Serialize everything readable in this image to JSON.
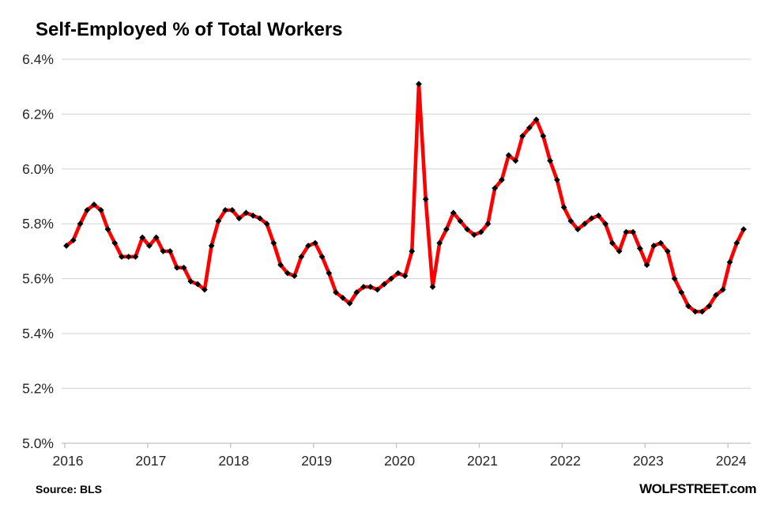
{
  "title": "Self-Employed % of Total Workers",
  "footer": {
    "source": "Source: BLS",
    "site": "WOLFSTREET.com"
  },
  "chart_data": {
    "type": "line",
    "title": "Self-Employed % of Total Workers",
    "xlabel": "",
    "ylabel": "",
    "grid": "horizontal",
    "legend": "none",
    "ylim": [
      5.0,
      6.4
    ],
    "y_tick_step": 0.2,
    "y_tick_labels": [
      "6.4%",
      "6.2%",
      "6.0%",
      "5.8%",
      "5.6%",
      "5.4%",
      "5.2%",
      "5.0%"
    ],
    "x_tick_labels": [
      "2016",
      "2017",
      "2018",
      "2019",
      "2020",
      "2021",
      "2022",
      "2023",
      "2024"
    ],
    "line_color": "#FF0000",
    "marker_color": "#000000",
    "marker_shape": "diamond",
    "gridline_color": "#D9D9D9",
    "axis_color": "#C6C6C6",
    "label_color": "#262626",
    "series": [
      {
        "name": "Self-employed % of total workers",
        "start": "2016-01",
        "frequency": "monthly",
        "end": "2024-03",
        "values": [
          5.72,
          5.74,
          5.8,
          5.85,
          5.87,
          5.85,
          5.78,
          5.73,
          5.68,
          5.68,
          5.68,
          5.75,
          5.72,
          5.75,
          5.7,
          5.7,
          5.64,
          5.64,
          5.59,
          5.58,
          5.56,
          5.72,
          5.81,
          5.85,
          5.85,
          5.82,
          5.84,
          5.83,
          5.82,
          5.8,
          5.73,
          5.65,
          5.62,
          5.61,
          5.68,
          5.72,
          5.73,
          5.68,
          5.62,
          5.55,
          5.53,
          5.51,
          5.55,
          5.57,
          5.57,
          5.56,
          5.58,
          5.6,
          5.62,
          5.61,
          5.7,
          6.31,
          5.89,
          5.57,
          5.73,
          5.78,
          5.84,
          5.81,
          5.78,
          5.76,
          5.77,
          5.8,
          5.93,
          5.96,
          6.05,
          6.03,
          6.12,
          6.15,
          6.18,
          6.12,
          6.03,
          5.96,
          5.86,
          5.81,
          5.78,
          5.8,
          5.82,
          5.83,
          5.8,
          5.73,
          5.7,
          5.77,
          5.77,
          5.71,
          5.65,
          5.72,
          5.73,
          5.7,
          5.6,
          5.55,
          5.5,
          5.48,
          5.48,
          5.5,
          5.54,
          5.56,
          5.66,
          5.73,
          5.78
        ]
      }
    ]
  }
}
